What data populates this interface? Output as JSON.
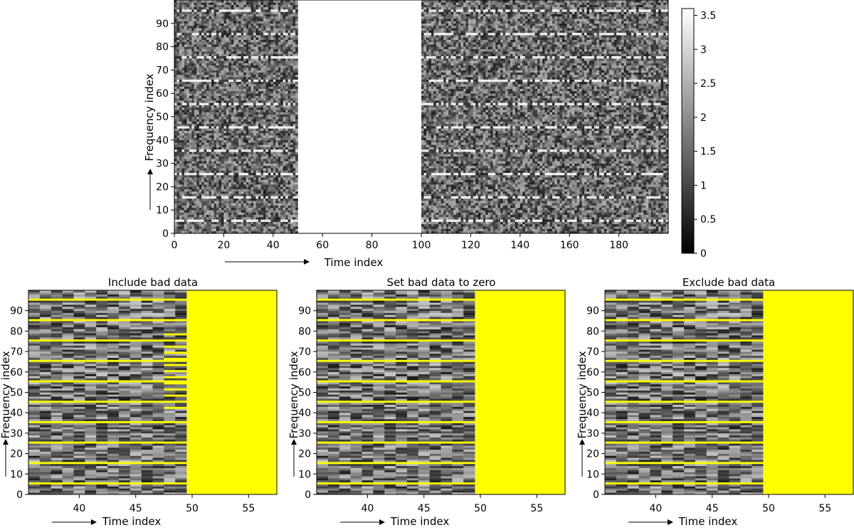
{
  "chart_data": [
    {
      "type": "heatmap",
      "title": "",
      "xlabel": "Time index",
      "ylabel": "Frequency index",
      "xlim": [
        0,
        200
      ],
      "ylim": [
        0,
        100
      ],
      "xticks": [
        0,
        20,
        40,
        60,
        80,
        100,
        120,
        140,
        160,
        180
      ],
      "yticks": [
        0,
        10,
        20,
        30,
        40,
        50,
        60,
        70,
        80,
        90
      ],
      "colormap": "gray",
      "blank_time_range": [
        50,
        100
      ],
      "bright_frequency_rows": [
        5,
        15,
        25,
        35,
        45,
        55,
        65,
        75,
        85,
        95
      ],
      "colorbar": {
        "range": [
          0,
          3.6
        ],
        "ticks": [
          0,
          0.5,
          1,
          1.5,
          2,
          2.5,
          3,
          3.5
        ]
      }
    },
    {
      "type": "heatmap",
      "title": "Include bad data",
      "xlabel": "Time index",
      "ylabel": "Frequency index",
      "xlim": [
        35.5,
        57.5
      ],
      "ylim": [
        0,
        100
      ],
      "xticks": [
        40,
        45,
        50,
        55
      ],
      "yticks": [
        0,
        10,
        20,
        30,
        40,
        50,
        60,
        70,
        80,
        90
      ],
      "colormap": "gray",
      "flagged_color": "#ffff00",
      "data_time_range": [
        35.5,
        49.5
      ],
      "flagged_time_range": [
        49.5,
        57.5
      ],
      "flagged_frequency_rows": [
        5,
        15,
        25,
        35,
        45,
        55,
        65,
        75,
        85,
        95
      ]
    },
    {
      "type": "heatmap",
      "title": "Set bad data to zero",
      "xlabel": "Time index",
      "ylabel": "Frequency index",
      "xlim": [
        35.5,
        57.5
      ],
      "ylim": [
        0,
        100
      ],
      "xticks": [
        40,
        45,
        50,
        55
      ],
      "yticks": [
        0,
        10,
        20,
        30,
        40,
        50,
        60,
        70,
        80,
        90
      ],
      "colormap": "gray",
      "flagged_color": "#ffff00",
      "data_time_range": [
        35.5,
        49.5
      ],
      "flagged_time_range": [
        49.5,
        57.5
      ],
      "flagged_frequency_rows": [
        5,
        15,
        25,
        35,
        45,
        55,
        65,
        75,
        85,
        95
      ]
    },
    {
      "type": "heatmap",
      "title": "Exclude bad data",
      "xlabel": "Time index",
      "ylabel": "Frequency index",
      "xlim": [
        35.5,
        57.5
      ],
      "ylim": [
        0,
        100
      ],
      "xticks": [
        40,
        45,
        50,
        55
      ],
      "yticks": [
        0,
        10,
        20,
        30,
        40,
        50,
        60,
        70,
        80,
        90
      ],
      "colormap": "gray",
      "flagged_color": "#ffff00",
      "data_time_range": [
        35.5,
        49.5
      ],
      "flagged_time_range": [
        49.5,
        57.5
      ],
      "flagged_frequency_rows": [
        5,
        15,
        25,
        35,
        45,
        55,
        65,
        75,
        85,
        95
      ]
    }
  ]
}
